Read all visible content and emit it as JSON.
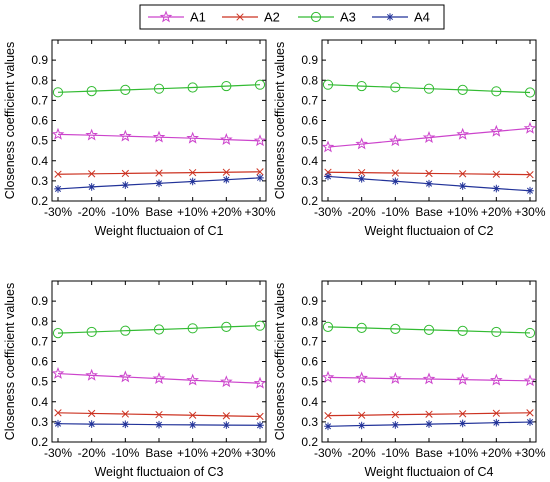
{
  "legend": {
    "placement": "top-center",
    "entries": [
      {
        "label": "A1",
        "color": "#cc44cc",
        "marker": "star"
      },
      {
        "label": "A2",
        "color": "#cc3322",
        "marker": "x"
      },
      {
        "label": "A3",
        "color": "#33bb33",
        "marker": "circle"
      },
      {
        "label": "A4",
        "color": "#223399",
        "marker": "asterisk"
      }
    ]
  },
  "chart_data": [
    {
      "type": "line",
      "xlabel": "Weight fluctuaion of C1",
      "ylabel": "Closeness coefficient values",
      "categories": [
        "-30%",
        "-20%",
        "-10%",
        "Base",
        "+10%",
        "+20%",
        "+30%"
      ],
      "ylim": [
        0.2,
        1.0
      ],
      "yticks": [
        "0.2",
        "0.3",
        "0.4",
        "0.5",
        "0.6",
        "0.7",
        "0.8",
        "0.9"
      ],
      "grid": false,
      "series": [
        {
          "name": "A1",
          "values": [
            0.531,
            0.527,
            0.522,
            0.517,
            0.512,
            0.505,
            0.499
          ]
        },
        {
          "name": "A2",
          "values": [
            0.333,
            0.335,
            0.337,
            0.339,
            0.341,
            0.343,
            0.345
          ]
        },
        {
          "name": "A3",
          "values": [
            0.74,
            0.746,
            0.752,
            0.758,
            0.764,
            0.771,
            0.778
          ]
        },
        {
          "name": "A4",
          "values": [
            0.26,
            0.27,
            0.279,
            0.288,
            0.297,
            0.306,
            0.315
          ]
        }
      ]
    },
    {
      "type": "line",
      "xlabel": "Weight fluctuaion of C2",
      "ylabel": "Closeness coefficient values",
      "categories": [
        "-30%",
        "-20%",
        "-10%",
        "Base",
        "+10%",
        "+20%",
        "+30%"
      ],
      "ylim": [
        0.2,
        1.0
      ],
      "yticks": [
        "0.2",
        "0.3",
        "0.4",
        "0.5",
        "0.6",
        "0.7",
        "0.8",
        "0.9"
      ],
      "grid": false,
      "series": [
        {
          "name": "A1",
          "values": [
            0.468,
            0.483,
            0.499,
            0.515,
            0.531,
            0.546,
            0.561
          ]
        },
        {
          "name": "A2",
          "values": [
            0.343,
            0.341,
            0.339,
            0.337,
            0.335,
            0.333,
            0.331
          ]
        },
        {
          "name": "A3",
          "values": [
            0.778,
            0.771,
            0.765,
            0.758,
            0.752,
            0.745,
            0.739
          ]
        },
        {
          "name": "A4",
          "values": [
            0.322,
            0.31,
            0.298,
            0.286,
            0.274,
            0.262,
            0.251
          ]
        }
      ]
    },
    {
      "type": "line",
      "xlabel": "Weight fluctuaion of C3",
      "ylabel": "Closeness coefficient values",
      "categories": [
        "-30%",
        "-20%",
        "-10%",
        "Base",
        "+10%",
        "+20%",
        "+30%"
      ],
      "ylim": [
        0.2,
        1.0
      ],
      "yticks": [
        "0.2",
        "0.3",
        "0.4",
        "0.5",
        "0.6",
        "0.7",
        "0.8",
        "0.9"
      ],
      "grid": false,
      "series": [
        {
          "name": "A1",
          "values": [
            0.54,
            0.531,
            0.523,
            0.515,
            0.507,
            0.499,
            0.492
          ]
        },
        {
          "name": "A2",
          "values": [
            0.345,
            0.342,
            0.339,
            0.336,
            0.333,
            0.33,
            0.327
          ]
        },
        {
          "name": "A3",
          "values": [
            0.741,
            0.747,
            0.753,
            0.759,
            0.765,
            0.772,
            0.778
          ]
        },
        {
          "name": "A4",
          "values": [
            0.291,
            0.289,
            0.288,
            0.286,
            0.285,
            0.284,
            0.283
          ]
        }
      ]
    },
    {
      "type": "line",
      "xlabel": "Weight fluctuaion of C4",
      "ylabel": "Closeness coefficient values",
      "categories": [
        "-30%",
        "-20%",
        "-10%",
        "Base",
        "+10%",
        "+20%",
        "+30%"
      ],
      "ylim": [
        0.2,
        1.0
      ],
      "yticks": [
        "0.2",
        "0.3",
        "0.4",
        "0.5",
        "0.6",
        "0.7",
        "0.8",
        "0.9"
      ],
      "grid": false,
      "series": [
        {
          "name": "A1",
          "values": [
            0.521,
            0.518,
            0.515,
            0.513,
            0.51,
            0.507,
            0.504
          ]
        },
        {
          "name": "A2",
          "values": [
            0.331,
            0.333,
            0.336,
            0.338,
            0.34,
            0.343,
            0.345
          ]
        },
        {
          "name": "A3",
          "values": [
            0.772,
            0.767,
            0.762,
            0.757,
            0.752,
            0.747,
            0.742
          ]
        },
        {
          "name": "A4",
          "values": [
            0.278,
            0.282,
            0.285,
            0.289,
            0.292,
            0.296,
            0.299
          ]
        }
      ]
    }
  ]
}
